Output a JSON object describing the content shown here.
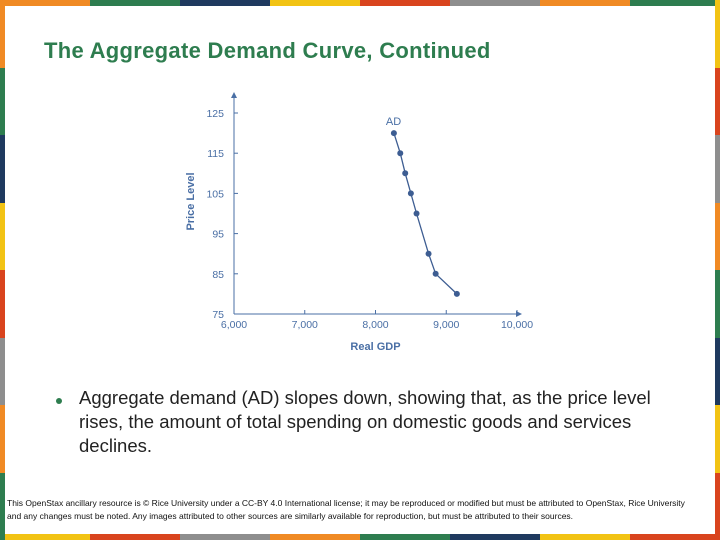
{
  "slide": {
    "title": "The Aggregate Demand Curve, Continued",
    "bullet": "Aggregate demand (AD) slopes down, showing that, as the price level rises, the amount of total spending on domestic goods and services declines.",
    "footer": "This OpenStax ancillary resource is © Rice University under a CC-BY 4.0 International license; it may be reproduced or modified but must be attributed to OpenStax, Rice University and any changes must be noted.  Any images attributed to other sources are similarly available for reproduction, but must be attributed to their sources."
  },
  "colors": {
    "title": "#2e7d4f",
    "chart_text": "#4a6fa5",
    "series": "#3d5d92"
  },
  "stripe_colors": [
    "#f08a24",
    "#2e7d4f",
    "#1f3a5f",
    "#f2c314",
    "#d9441e",
    "#8e8e8e",
    "#f08a24",
    "#2e7d4f",
    "#1f3a5f",
    "#f2c314",
    "#d9441e",
    "#8e8e8e"
  ],
  "chart_data": {
    "type": "line",
    "title": "",
    "xlabel": "Real GDP",
    "ylabel": "Price Level",
    "xlim": [
      6000,
      10000
    ],
    "ylim": [
      75,
      125
    ],
    "xticks": [
      "6,000",
      "7,000",
      "8,000",
      "9,000",
      "10,000"
    ],
    "yticks": [
      "75",
      "85",
      "95",
      "105",
      "115",
      "125"
    ],
    "series": [
      {
        "name": "AD",
        "x": [
          8260,
          8350,
          8420,
          8500,
          8580,
          8750,
          8850,
          9150
        ],
        "y": [
          120,
          115,
          110,
          105,
          100,
          90,
          85,
          80
        ]
      }
    ],
    "grid": false
  }
}
